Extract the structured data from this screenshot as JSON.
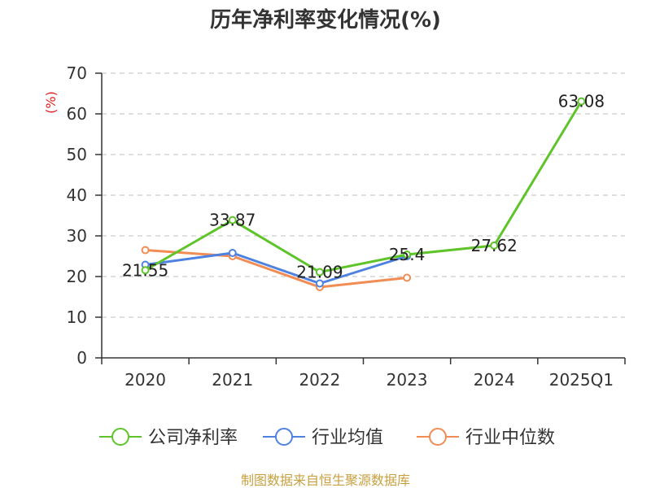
{
  "chart_data": {
    "type": "line",
    "title": "历年净利率变化情况(%)",
    "ylabel": "(%)",
    "categories": [
      "2020",
      "2021",
      "2022",
      "2023",
      "2024",
      "2025Q1"
    ],
    "ylim": [
      0,
      70
    ],
    "yticks": [
      0,
      10,
      20,
      30,
      40,
      50,
      60,
      70
    ],
    "grid": true,
    "legend_position": "bottom",
    "series": [
      {
        "name": "公司净利率",
        "color": "#5ec42a",
        "values": [
          21.55,
          33.87,
          21.09,
          25.4,
          27.62,
          63.08
        ],
        "labels": [
          "21.55",
          "33.87",
          "21.09",
          "25.4",
          "27.62",
          "63.08"
        ]
      },
      {
        "name": "行业均值",
        "color": "#4e82e0",
        "values": [
          22.9,
          25.8,
          18.3,
          25.0,
          null,
          null
        ]
      },
      {
        "name": "行业中位数",
        "color": "#f28c55",
        "values": [
          26.5,
          25.0,
          17.4,
          19.7,
          null,
          null
        ]
      }
    ]
  },
  "source": "制图数据来自恒生聚源数据库"
}
